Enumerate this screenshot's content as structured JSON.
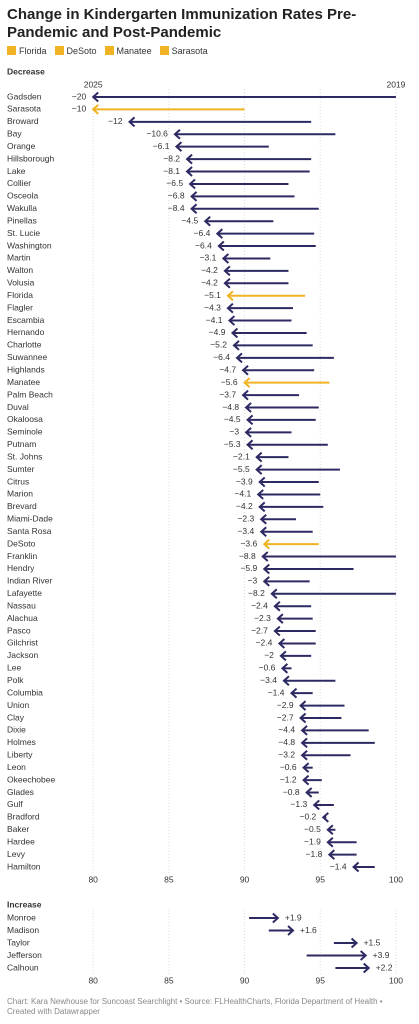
{
  "title": "Change in Kindergarten Immunization Rates Pre-Pandemic and Post-Pandemic",
  "legend": [
    {
      "name": "Florida",
      "color": "#f0b323"
    },
    {
      "name": "DeSoto",
      "color": "#f0b323"
    },
    {
      "name": "Manatee",
      "color": "#f0b323"
    },
    {
      "name": "Sarasota",
      "color": "#f0b323"
    }
  ],
  "chart_data": [
    {
      "type": "arrow",
      "subtitle": "Decrease",
      "color": "#2d2a63",
      "xlim": [
        78.6,
        100.4
      ],
      "xticks": [
        80,
        85,
        90,
        95,
        100
      ],
      "grid": true,
      "categories": [
        "Gadsden",
        "Sarasota",
        "Broward",
        "Bay",
        "Orange",
        "Hillsborough",
        "Lake",
        "Collier",
        "Osceola",
        "Wakulla",
        "Pinellas",
        "St. Lucie",
        "Washington",
        "Martin",
        "Walton",
        "Volusia",
        "Florida",
        "Flagler",
        "Escambia",
        "Hernando",
        "Charlotte",
        "Suwannee",
        "Highlands",
        "Manatee",
        "Palm Beach",
        "Duval",
        "Okaloosa",
        "Seminole",
        "Putnam",
        "St. Johns",
        "Sumter",
        "Citrus",
        "Marion",
        "Brevard",
        "Miami-Dade",
        "Santa Rosa",
        "DeSoto",
        "Franklin",
        "Hendry",
        "Indian River",
        "Lafayette",
        "Nassau",
        "Alachua",
        "Pasco",
        "Gilchrist",
        "Jackson",
        "Lee",
        "Polk",
        "Columbia",
        "Union",
        "Clay",
        "Dixie",
        "Holmes",
        "Liberty",
        "Leon",
        "Okeechobee",
        "Glades",
        "Gulf",
        "Bradford",
        "Baker",
        "Hardee",
        "Levy",
        "Hamilton"
      ],
      "series": [
        {
          "name": "2019",
          "values": [
            100.0,
            90.0,
            94.4,
            96.0,
            91.6,
            94.4,
            94.3,
            92.9,
            93.3,
            94.9,
            91.9,
            94.6,
            94.7,
            91.7,
            92.9,
            92.9,
            94.0,
            93.2,
            93.1,
            94.1,
            94.5,
            95.9,
            94.6,
            95.6,
            93.6,
            94.9,
            94.7,
            93.1,
            95.5,
            92.9,
            96.3,
            94.9,
            95.0,
            95.2,
            93.4,
            94.5,
            94.9,
            100.0,
            97.2,
            94.3,
            100.0,
            94.4,
            94.5,
            94.7,
            94.7,
            94.4,
            93.1,
            96.0,
            94.5,
            96.6,
            96.4,
            98.2,
            98.6,
            97.0,
            94.5,
            95.1,
            94.9,
            95.9,
            95.4,
            96.0,
            97.4,
            97.4,
            98.6
          ]
        },
        {
          "name": "2025",
          "values": [
            80.0,
            80.0,
            82.4,
            85.4,
            85.5,
            86.2,
            86.2,
            86.4,
            86.5,
            86.5,
            87.4,
            88.2,
            88.3,
            88.6,
            88.7,
            88.7,
            88.9,
            88.9,
            89.0,
            89.2,
            89.3,
            89.5,
            89.9,
            90.0,
            89.9,
            90.1,
            90.2,
            90.1,
            90.2,
            90.8,
            90.8,
            91.0,
            90.9,
            91.0,
            91.1,
            91.1,
            91.3,
            91.2,
            91.3,
            91.3,
            91.8,
            92.0,
            92.2,
            92.0,
            92.3,
            92.4,
            92.5,
            92.6,
            93.1,
            93.7,
            93.7,
            93.8,
            93.8,
            93.8,
            93.9,
            93.9,
            94.1,
            94.6,
            95.2,
            95.5,
            95.5,
            95.6,
            97.2
          ]
        }
      ],
      "change_labels": [
        "−20",
        "−10",
        "−12",
        "−10.6",
        "−6.1",
        "−8.2",
        "−8.1",
        "−6.5",
        "−6.8",
        "−8.4",
        "−4.5",
        "−6.4",
        "−6.4",
        "−3.1",
        "−4.2",
        "−4.2",
        "−5.1",
        "−4.3",
        "−4.1",
        "−4.9",
        "−5.2",
        "−6.4",
        "−4.7",
        "−5.6",
        "−3.7",
        "−4.8",
        "−4.5",
        "−3",
        "−5.3",
        "−2.1",
        "−5.5",
        "−3.9",
        "−4.1",
        "−4.2",
        "−2.3",
        "−3.4",
        "−3.6",
        "−8.8",
        "−5.9",
        "−3",
        "−8.2",
        "−2.4",
        "−2.3",
        "−2.7",
        "−2.4",
        "−2",
        "−0.6",
        "−3.4",
        "−1.4",
        "−2.9",
        "−2.7",
        "−4.4",
        "−4.8",
        "−3.2",
        "−0.6",
        "−1.2",
        "−0.8",
        "−1.3",
        "−0.2",
        "−0.5",
        "−1.9",
        "−1.8",
        "−1.4"
      ]
    },
    {
      "type": "arrow",
      "subtitle": "Increase",
      "color": "#2d2a63",
      "xlim": [
        78.6,
        100.4
      ],
      "xticks": [
        80,
        85,
        90,
        95,
        100
      ],
      "grid": true,
      "categories": [
        "Monroe",
        "Madison",
        "Taylor",
        "Jefferson",
        "Calhoun"
      ],
      "series": [
        {
          "values": [
            90.3,
            91.6,
            95.9,
            94.1,
            96.0
          ]
        },
        {
          "values": [
            92.2,
            93.2,
            97.4,
            98.0,
            98.2
          ]
        }
      ],
      "change_labels": [
        "+1.9",
        "+1.6",
        "+1.5",
        "+3.9",
        "+2.2"
      ]
    }
  ],
  "footer": "Chart: Kara Newhouse for Suncoast Searchlight • Source: FLHealthCharts, Florida Department of Health • Created with Datawrapper"
}
